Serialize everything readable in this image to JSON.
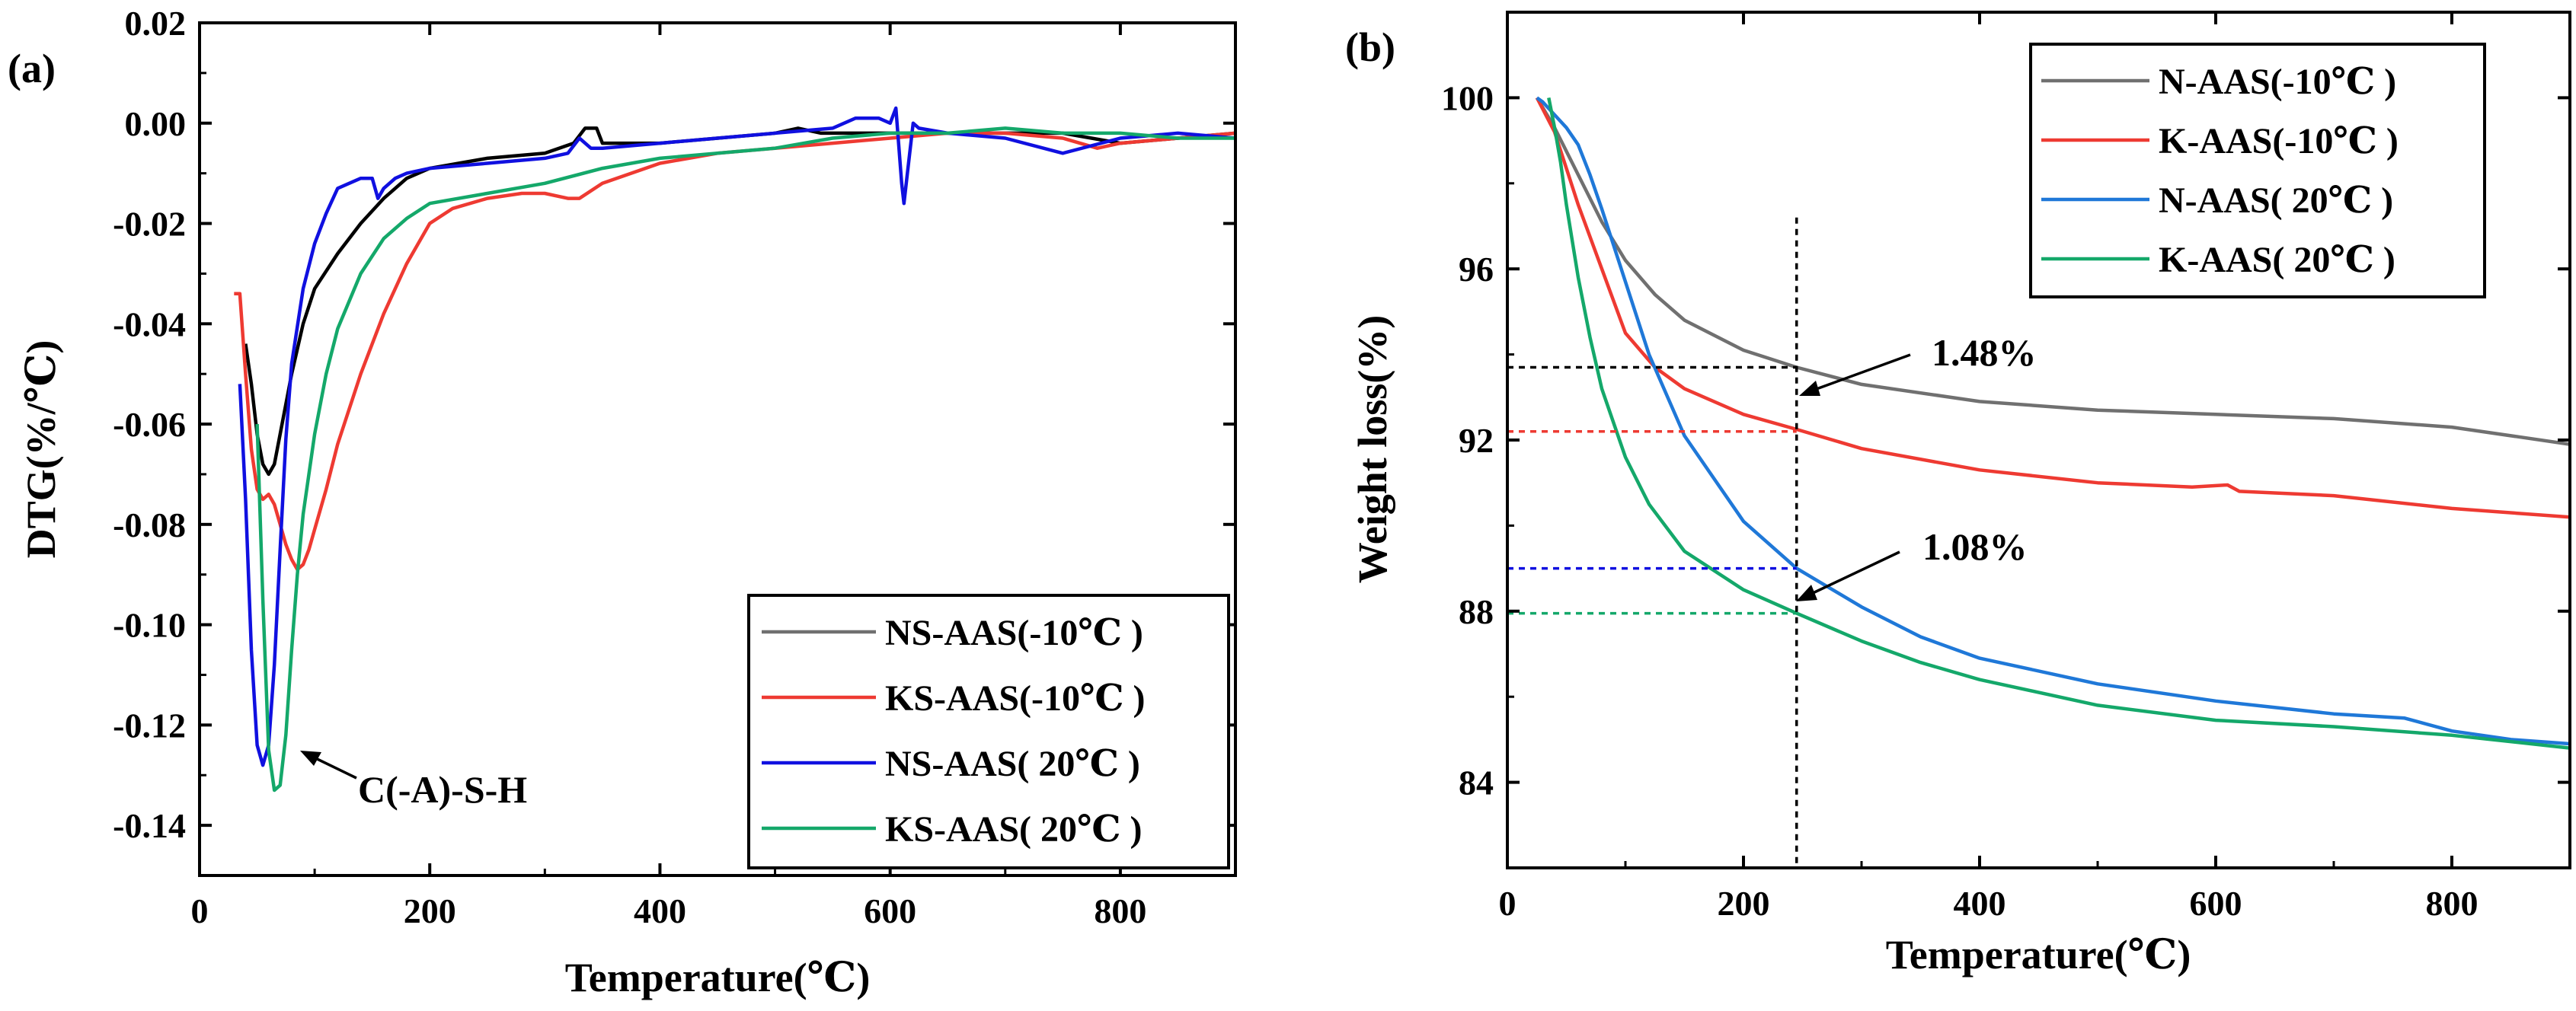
{
  "figure_labels": {
    "a": "(a)",
    "b": "(b)"
  },
  "colors": {
    "black": "#000000",
    "red": "#ee3a32",
    "blue": "#1010e0",
    "green": "#14a86a",
    "gray": "#707070",
    "lightblue": "#1f78d8",
    "frame": "#000000"
  },
  "annotations": {
    "a_peak": "C(-A)-S-H",
    "b_loss_top": "1.48%",
    "b_loss_bottom": "1.08%"
  },
  "chart_data": [
    {
      "id": "a",
      "type": "line",
      "title": "",
      "xlabel": "Temperature(℃)",
      "ylabel": "DTG(%/℃)",
      "xlim": [
        0,
        900
      ],
      "ylim": [
        -0.15,
        0.02
      ],
      "xticks": [
        0,
        200,
        400,
        600,
        800
      ],
      "xtick_labels": [
        "0",
        "200",
        "400",
        "600",
        "800"
      ],
      "yticks": [
        0.02,
        0.0,
        -0.02,
        -0.04,
        -0.06,
        -0.08,
        -0.1,
        -0.12,
        -0.14
      ],
      "ytick_labels": [
        "0.02",
        "0.00",
        "-0.02",
        "-0.04",
        "-0.06",
        "-0.08",
        "-0.10",
        "-0.12",
        "-0.14"
      ],
      "legend_position": "bottom-right",
      "series": [
        {
          "name": "NS-AAS(-10℃ )",
          "legend_color": "#707070",
          "color": "#000000",
          "x": [
            40,
            45,
            50,
            55,
            60,
            65,
            70,
            80,
            90,
            100,
            120,
            140,
            160,
            180,
            200,
            250,
            300,
            325,
            335,
            345,
            350,
            400,
            450,
            500,
            520,
            540,
            600,
            700,
            750,
            800,
            850,
            900
          ],
          "y": [
            -0.044,
            -0.052,
            -0.062,
            -0.068,
            -0.07,
            -0.068,
            -0.062,
            -0.05,
            -0.04,
            -0.033,
            -0.026,
            -0.02,
            -0.015,
            -0.011,
            -0.009,
            -0.007,
            -0.006,
            -0.004,
            -0.001,
            -0.001,
            -0.004,
            -0.004,
            -0.003,
            -0.002,
            -0.001,
            -0.002,
            -0.002,
            -0.002,
            -0.002,
            -0.004,
            -0.003,
            -0.002
          ]
        },
        {
          "name": "KS-AAS(-10℃ )",
          "legend_color": "#ee3a32",
          "color": "#ee3a32",
          "x": [
            30,
            35,
            40,
            45,
            50,
            55,
            60,
            65,
            70,
            75,
            80,
            85,
            90,
            95,
            100,
            110,
            120,
            140,
            160,
            180,
            200,
            220,
            250,
            280,
            300,
            320,
            330,
            350,
            400,
            450,
            500,
            550,
            600,
            650,
            700,
            750,
            780,
            800,
            850,
            900
          ],
          "y": [
            -0.034,
            -0.034,
            -0.05,
            -0.065,
            -0.073,
            -0.075,
            -0.074,
            -0.076,
            -0.08,
            -0.084,
            -0.087,
            -0.089,
            -0.088,
            -0.085,
            -0.081,
            -0.073,
            -0.064,
            -0.05,
            -0.038,
            -0.028,
            -0.02,
            -0.017,
            -0.015,
            -0.014,
            -0.014,
            -0.015,
            -0.015,
            -0.012,
            -0.008,
            -0.006,
            -0.005,
            -0.004,
            -0.003,
            -0.002,
            -0.002,
            -0.003,
            -0.005,
            -0.004,
            -0.003,
            -0.002
          ]
        },
        {
          "name": "NS-AAS( 20℃ )",
          "legend_color": "#1010e0",
          "color": "#1010e0",
          "x": [
            35,
            40,
            45,
            50,
            55,
            60,
            65,
            70,
            75,
            80,
            90,
            100,
            110,
            120,
            140,
            150,
            155,
            160,
            170,
            180,
            200,
            250,
            300,
            320,
            330,
            340,
            350,
            400,
            450,
            500,
            550,
            570,
            590,
            600,
            605,
            610,
            612,
            615,
            620,
            625,
            650,
            700,
            750,
            800,
            850,
            900
          ],
          "y": [
            -0.052,
            -0.075,
            -0.105,
            -0.124,
            -0.128,
            -0.124,
            -0.108,
            -0.085,
            -0.063,
            -0.048,
            -0.033,
            -0.024,
            -0.018,
            -0.013,
            -0.011,
            -0.011,
            -0.015,
            -0.013,
            -0.011,
            -0.01,
            -0.009,
            -0.008,
            -0.007,
            -0.006,
            -0.003,
            -0.005,
            -0.005,
            -0.004,
            -0.003,
            -0.002,
            -0.001,
            0.001,
            0.001,
            0.0,
            0.003,
            -0.012,
            -0.016,
            -0.01,
            0.0,
            -0.001,
            -0.002,
            -0.003,
            -0.006,
            -0.003,
            -0.002,
            -0.003
          ]
        },
        {
          "name": "KS-AAS( 20℃ )",
          "legend_color": "#14a86a",
          "color": "#14a86a",
          "x": [
            50,
            55,
            60,
            65,
            70,
            75,
            80,
            85,
            90,
            100,
            110,
            120,
            140,
            160,
            180,
            200,
            250,
            300,
            350,
            400,
            450,
            500,
            550,
            600,
            650,
            700,
            750,
            800,
            850,
            900
          ],
          "y": [
            -0.06,
            -0.095,
            -0.125,
            -0.133,
            -0.132,
            -0.122,
            -0.105,
            -0.09,
            -0.078,
            -0.062,
            -0.05,
            -0.041,
            -0.03,
            -0.023,
            -0.019,
            -0.016,
            -0.014,
            -0.012,
            -0.009,
            -0.007,
            -0.006,
            -0.005,
            -0.003,
            -0.002,
            -0.002,
            -0.001,
            -0.002,
            -0.002,
            -0.003,
            -0.003
          ]
        }
      ]
    },
    {
      "id": "b",
      "type": "line",
      "title": "",
      "xlabel": "Temperature(℃)",
      "ylabel": "Weight loss(%)",
      "xlim": [
        0,
        900
      ],
      "ylim": [
        82.0,
        102.0
      ],
      "xticks": [
        0,
        200,
        400,
        600,
        800
      ],
      "xtick_labels": [
        "0",
        "200",
        "400",
        "600",
        "800"
      ],
      "yticks": [
        84,
        88,
        92,
        96,
        100
      ],
      "ytick_labels": [
        "84",
        "88",
        "92",
        "96",
        "100"
      ],
      "legend_position": "top-right",
      "reference_x": 245,
      "reference_lines": [
        {
          "y": 93.7,
          "color": "#000000"
        },
        {
          "y": 92.2,
          "color": "#ee3a32"
        },
        {
          "y": 89.0,
          "color": "#1010e0"
        },
        {
          "y": 87.95,
          "color": "#14a86a"
        }
      ],
      "series": [
        {
          "name": "N-AAS(-10℃ )",
          "color": "#707070",
          "x": [
            25,
            40,
            60,
            80,
            100,
            125,
            150,
            200,
            245,
            300,
            400,
            500,
            600,
            700,
            800,
            900
          ],
          "y": [
            100.0,
            99.3,
            98.2,
            97.1,
            96.2,
            95.4,
            94.8,
            94.1,
            93.7,
            93.3,
            92.9,
            92.7,
            92.6,
            92.5,
            92.3,
            91.9
          ]
        },
        {
          "name": "K-AAS(-10℃ )",
          "color": "#ee3a32",
          "x": [
            25,
            40,
            60,
            80,
            100,
            125,
            150,
            200,
            245,
            300,
            400,
            500,
            580,
            610,
            620,
            700,
            800,
            900
          ],
          "y": [
            100.0,
            99.2,
            97.5,
            96.0,
            94.5,
            93.7,
            93.2,
            92.6,
            92.25,
            91.8,
            91.3,
            91.0,
            90.9,
            90.95,
            90.8,
            90.7,
            90.4,
            90.2
          ]
        },
        {
          "name": "N-AAS( 20℃ )",
          "color": "#1f78d8",
          "x": [
            25,
            30,
            40,
            50,
            60,
            70,
            80,
            100,
            120,
            150,
            200,
            245,
            300,
            350,
            400,
            500,
            600,
            700,
            760,
            800,
            850,
            900
          ],
          "y": [
            100.0,
            99.9,
            99.6,
            99.3,
            98.9,
            98.2,
            97.4,
            95.7,
            94.0,
            92.1,
            90.1,
            89.0,
            88.1,
            87.4,
            86.9,
            86.3,
            85.9,
            85.6,
            85.5,
            85.2,
            85.0,
            84.9
          ]
        },
        {
          "name": "K-AAS( 20℃ )",
          "color": "#14a86a",
          "x": [
            35,
            40,
            45,
            50,
            60,
            70,
            80,
            100,
            120,
            150,
            200,
            245,
            300,
            350,
            400,
            500,
            600,
            700,
            800,
            900
          ],
          "y": [
            100.0,
            99.3,
            98.5,
            97.5,
            95.8,
            94.4,
            93.2,
            91.6,
            90.5,
            89.4,
            88.5,
            87.95,
            87.3,
            86.8,
            86.4,
            85.8,
            85.45,
            85.3,
            85.1,
            84.8
          ]
        }
      ]
    }
  ]
}
